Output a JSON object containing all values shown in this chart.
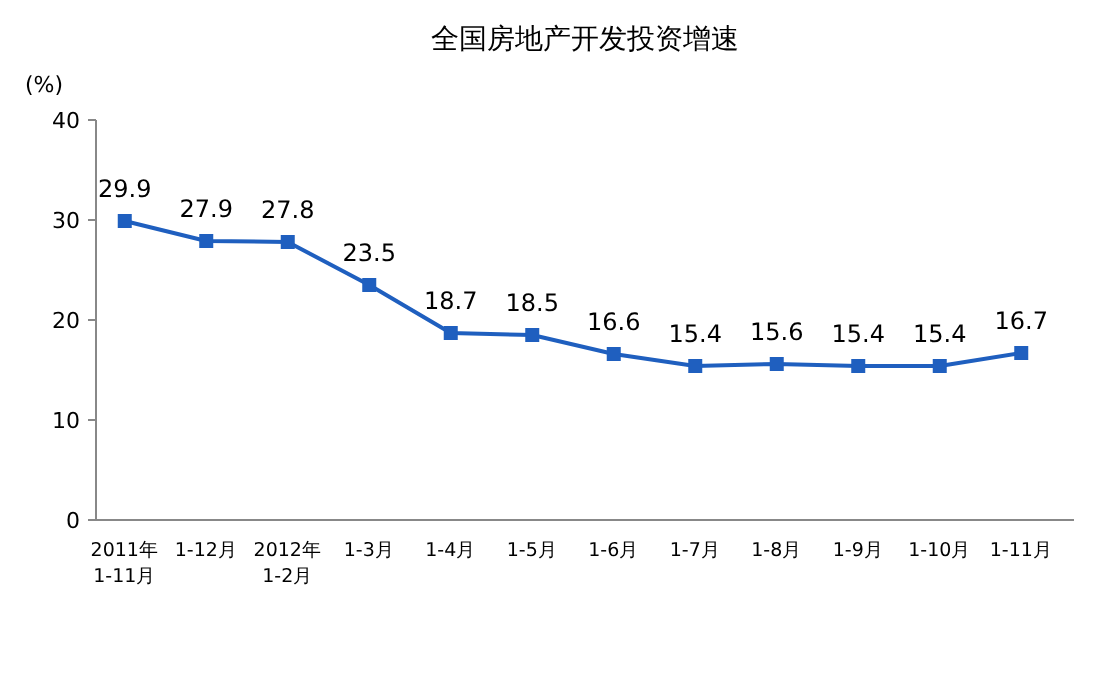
{
  "chart_data": {
    "type": "line",
    "title": "全国房地产开发投资增速",
    "ylabel": "(%)",
    "categories": [
      "2011年\n1-11月",
      "1-12月",
      "2012年\n1-2月",
      "1-3月",
      "1-4月",
      "1-5月",
      "1-6月",
      "1-7月",
      "1-8月",
      "1-9月",
      "1-10月",
      "1-11月"
    ],
    "series": [
      {
        "color": "#1f5fbf",
        "values": [
          29.9,
          27.9,
          27.8,
          23.5,
          18.7,
          18.5,
          16.6,
          15.4,
          15.6,
          15.4,
          15.4,
          16.7
        ]
      }
    ],
    "ylim": [
      0,
      40
    ],
    "yticks": [
      0,
      10,
      20,
      30,
      40
    ],
    "grid": false,
    "marker": "square",
    "line_style": "solid",
    "data_labels": true
  }
}
